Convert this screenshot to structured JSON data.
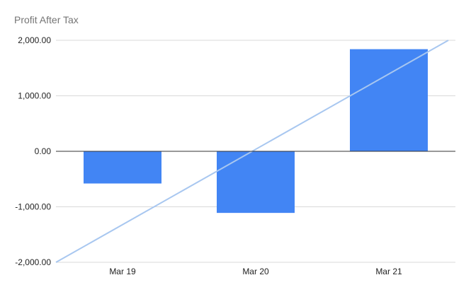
{
  "chart_data": {
    "type": "bar",
    "title": "Profit After Tax",
    "categories": [
      "Mar 19",
      "Mar 20",
      "Mar 21"
    ],
    "series": [
      {
        "values": [
          -580,
          -1110,
          1840
        ]
      }
    ],
    "ylim": [
      -2000,
      2000
    ],
    "yticks": [
      "2,000.00",
      "1,000.00",
      "0.00",
      "-1,000.00",
      "-2,000.00"
    ],
    "ytick_values": [
      2000,
      1000,
      0,
      -1000,
      -2000
    ],
    "trendline": {
      "start": -2000,
      "end": 2000
    },
    "grid": true,
    "legend": "none",
    "colors": {
      "bar": "#4285f4",
      "trend": "#a8c7f0",
      "grid": "#d9d9d9",
      "zero": "#333333"
    }
  }
}
